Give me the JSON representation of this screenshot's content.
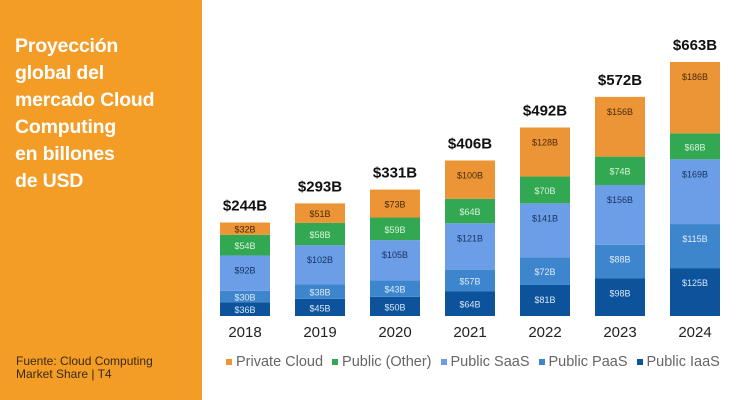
{
  "side_panel": {
    "title_lines": [
      "Proyección",
      "global del",
      "mercado Cloud",
      "Computing",
      "en billones",
      "de USD"
    ],
    "source_lines": [
      "Fuente: Cloud Computing",
      "Market Share | T4"
    ],
    "background": "#f39c26"
  },
  "chart_data": {
    "type": "bar",
    "stacked": true,
    "title": "Proyección global del mercado Cloud Computing en billones de USD",
    "xlabel": "",
    "ylabel": "",
    "ylim": [
      0,
      663
    ],
    "grid": false,
    "legend_position": "bottom",
    "categories": [
      "2018",
      "2019",
      "2020",
      "2021",
      "2022",
      "2023",
      "2024"
    ],
    "totals": [
      "$244B",
      "$293B",
      "$331B",
      "$406B",
      "$492B",
      "$572B",
      "$663B"
    ],
    "series": [
      {
        "name": "Public IaaS",
        "color": "#0d539c",
        "label_color": "#d6e6f7",
        "values": [
          36,
          45,
          50,
          64,
          81,
          98,
          125
        ]
      },
      {
        "name": "Public PaaS",
        "color": "#3d86cd",
        "label_color": "#dde9f7",
        "values": [
          30,
          38,
          43,
          57,
          72,
          88,
          115
        ]
      },
      {
        "name": "Public SaaS",
        "color": "#6c9ee8",
        "label_color": "#16325e",
        "values": [
          92,
          102,
          105,
          121,
          141,
          156,
          169
        ]
      },
      {
        "name": "Public (Other)",
        "color": "#33a853",
        "label_color": "#d8f2dc",
        "values": [
          54,
          58,
          59,
          64,
          70,
          74,
          68
        ]
      },
      {
        "name": "Private Cloud",
        "color": "#ec9536",
        "label_color": "#4a2a08",
        "values": [
          32,
          51,
          73,
          100,
          128,
          156,
          186
        ]
      }
    ],
    "legend_order": [
      "Private Cloud",
      "Public (Other)",
      "Public SaaS",
      "Public PaaS",
      "Public IaaS"
    ]
  }
}
